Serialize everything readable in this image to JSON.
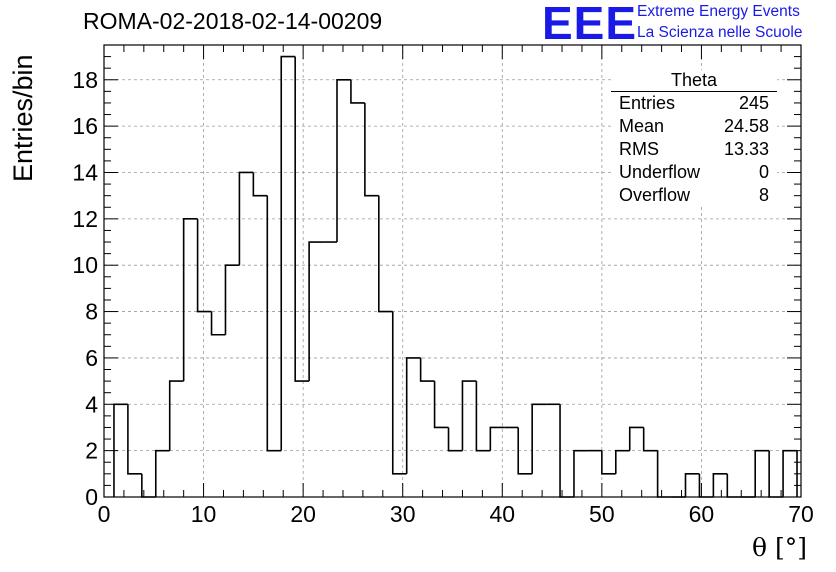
{
  "title": "ROMA-02-2018-02-14-00209",
  "logo": {
    "mark": "EEE",
    "line1": "Extreme Energy Events",
    "line2": "La Scienza nelle Scuole",
    "color": "#1a1ae6"
  },
  "stats_box": {
    "name": "Theta",
    "rows": [
      {
        "label": "Entries",
        "value": "245"
      },
      {
        "label": "Mean",
        "value": "24.58"
      },
      {
        "label": "RMS",
        "value": "13.33"
      },
      {
        "label": "Underflow",
        "value": "0"
      },
      {
        "label": "Overflow",
        "value": "8"
      }
    ]
  },
  "chart_data": {
    "type": "bar",
    "style": "step-histogram",
    "title": "ROMA-02-2018-02-14-00209",
    "xlabel": "θ [°]",
    "ylabel": "Entries/bin",
    "xlim": [
      0,
      70
    ],
    "ylim": [
      0,
      19.5
    ],
    "grid": true,
    "bin_edges_start": 1,
    "bin_width": 1.4,
    "xticks": [
      0,
      10,
      20,
      30,
      40,
      50,
      60,
      70
    ],
    "yticks": [
      0,
      2,
      4,
      6,
      8,
      10,
      12,
      14,
      16,
      18
    ],
    "values": [
      4,
      1,
      0,
      2,
      5,
      12,
      8,
      7,
      10,
      14,
      13,
      2,
      19,
      5,
      11,
      11,
      18,
      17,
      13,
      8,
      1,
      6,
      5,
      3,
      2,
      5,
      2,
      3,
      3,
      1,
      4,
      4,
      0,
      2,
      2,
      1,
      2,
      3,
      2,
      0,
      0,
      1,
      0,
      1,
      0,
      0,
      2,
      0,
      2
    ]
  }
}
